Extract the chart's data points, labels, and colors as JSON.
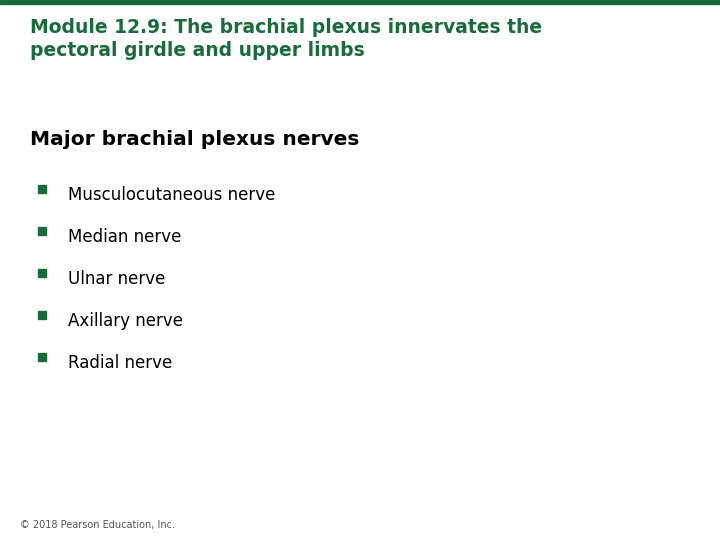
{
  "background_color": "#ffffff",
  "title_line1": "Module 12.9: The brachial plexus innervates the",
  "title_line2": "pectoral girdle and upper limbs",
  "title_color": "#1a6b3c",
  "title_fontsize": 13.5,
  "title_bold": true,
  "section_header": "Major brachial plexus nerves",
  "section_header_color": "#000000",
  "section_header_fontsize": 14.5,
  "section_header_bold": true,
  "bullet_color": "#1a6b3c",
  "bullet_text_color": "#000000",
  "bullet_fontsize": 12,
  "bullet_items": [
    "Musculocutaneous nerve",
    "Median nerve",
    "Ulnar nerve",
    "Axillary nerve",
    "Radial nerve"
  ],
  "footer_text": "© 2018 Pearson Education, Inc.",
  "footer_color": "#555555",
  "footer_fontsize": 7,
  "top_bar_color": "#1a6b3c",
  "top_bar_height": 0.008
}
